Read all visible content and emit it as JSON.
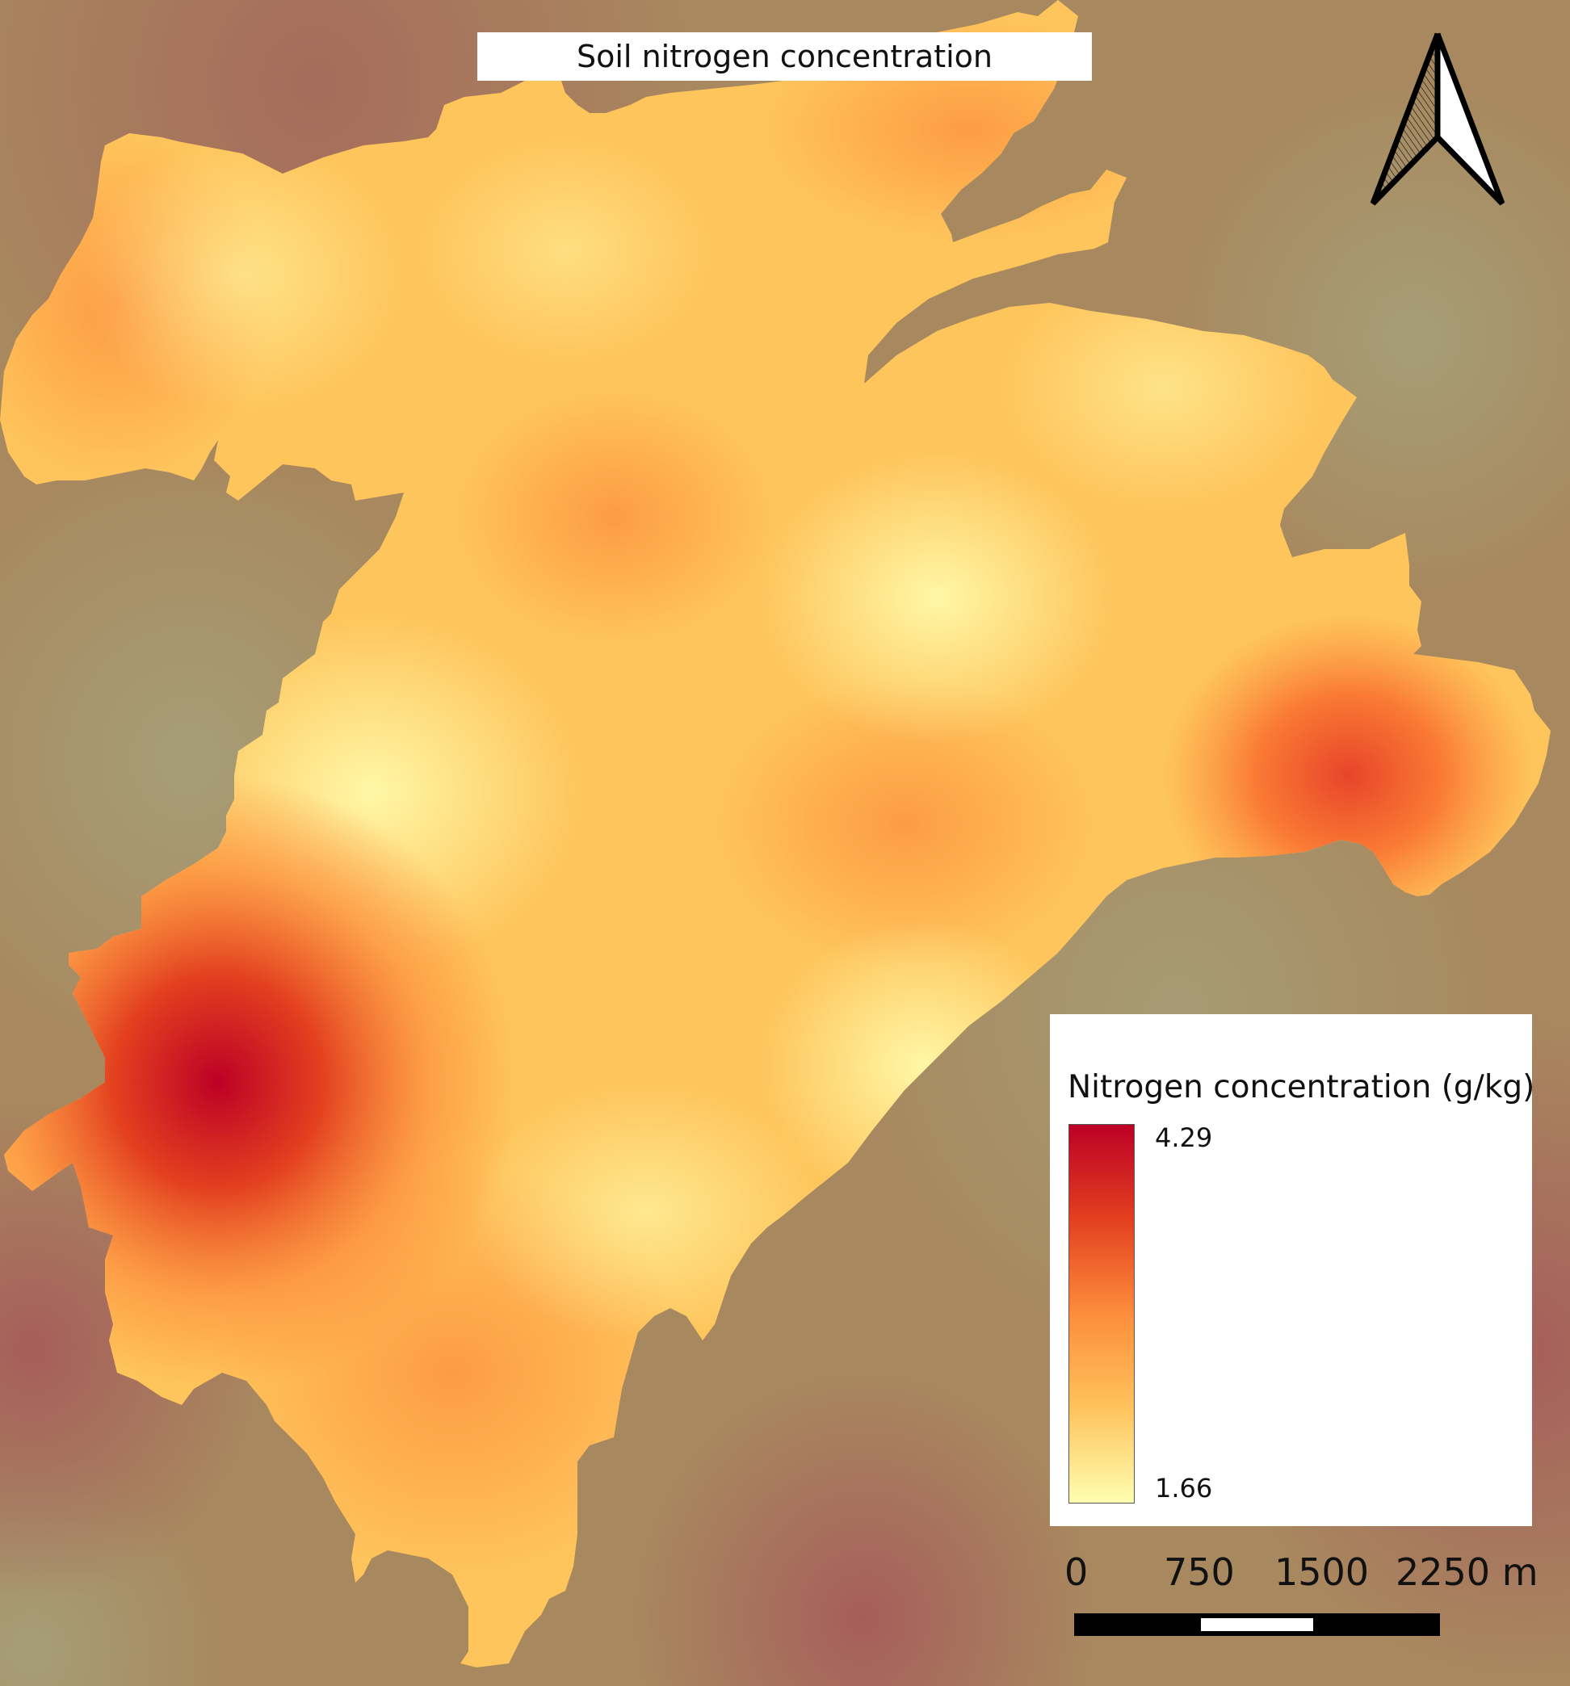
{
  "map": {
    "title": "Soil nitrogen concentration",
    "colors": {
      "background_low": "#a6a07a",
      "background_high": "#a6595a",
      "ramp_max": "#bd0026",
      "ramp_mid": "#fd8d3c",
      "ramp_min": "#ffffb2"
    }
  },
  "north_arrow": {
    "icon": "north-arrow-icon"
  },
  "legend": {
    "title": "Nitrogen concentration (g/kg)",
    "max_label": "4.29",
    "min_label": "1.66"
  },
  "scale_bar": {
    "labels": [
      "0",
      "750",
      "1500",
      "2250 m"
    ]
  }
}
